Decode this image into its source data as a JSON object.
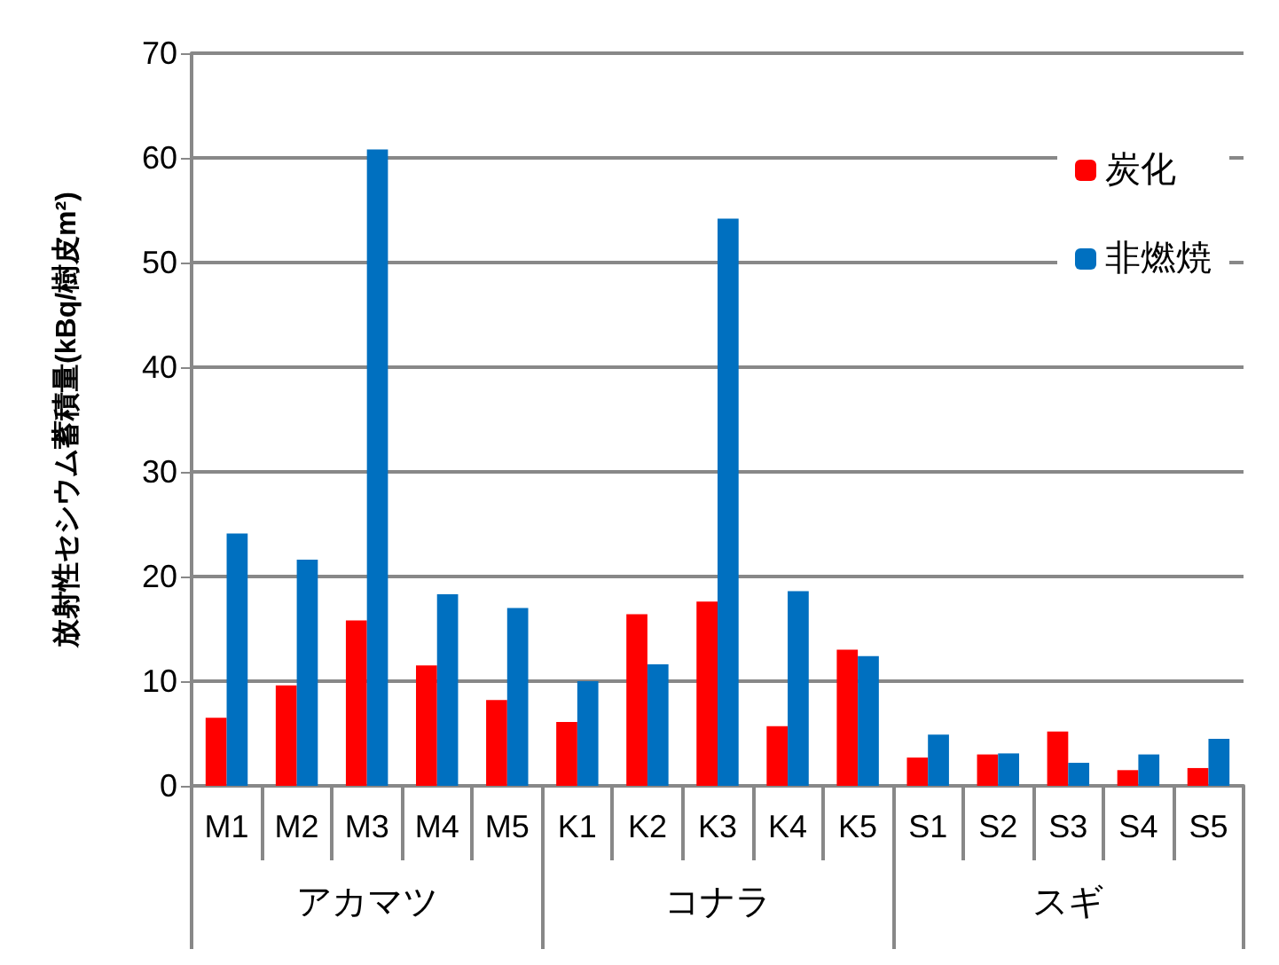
{
  "chart_data": {
    "type": "bar",
    "ylabel": "放射性セシウム蓄積量(kBq/樹皮m²)",
    "categories": [
      "M1",
      "M2",
      "M3",
      "M4",
      "M5",
      "K1",
      "K2",
      "K3",
      "K4",
      "K5",
      "S1",
      "S2",
      "S3",
      "S4",
      "S5"
    ],
    "annotations": [
      "アカマツ",
      "コナラ",
      "スギ"
    ],
    "series": [
      {
        "name": "炭化",
        "color": "#ff0000",
        "values": [
          6.5,
          9.6,
          15.8,
          11.5,
          8.2,
          6.1,
          16.4,
          17.6,
          5.7,
          13.0,
          2.7,
          3.0,
          5.2,
          1.5,
          1.7
        ]
      },
      {
        "name": "非燃焼",
        "color": "#0070c0",
        "values": [
          24.1,
          21.6,
          60.8,
          18.3,
          17.0,
          10.0,
          11.6,
          54.2,
          18.6,
          12.4,
          4.9,
          3.1,
          2.2,
          3.0,
          4.5
        ]
      }
    ],
    "ylim": [
      0,
      70
    ],
    "yticks": [
      0,
      10,
      20,
      30,
      40,
      50,
      60,
      70
    ],
    "grid": "y",
    "legend": "top right"
  }
}
